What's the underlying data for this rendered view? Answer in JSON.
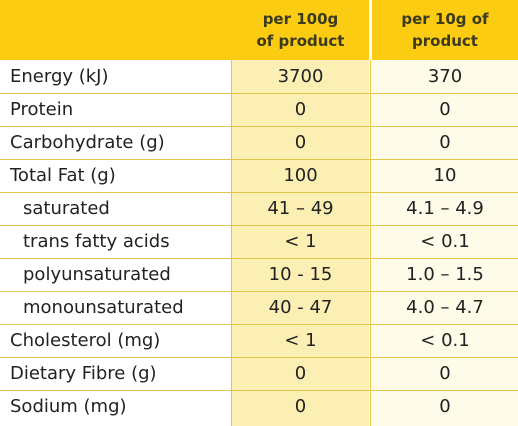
{
  "header": {
    "col1": "per 100g\nof product",
    "col2": "per 10g of\nproduct"
  },
  "rows": [
    {
      "label": "Energy (kJ)",
      "v1": "3700",
      "v2": "370"
    },
    {
      "label": "Protein",
      "v1": "0",
      "v2": "0"
    },
    {
      "label": "Carbohydrate (g)",
      "v1": "0",
      "v2": "0"
    },
    {
      "label": "Total Fat (g)",
      "v1": "100",
      "v2": "10"
    },
    {
      "label": "saturated",
      "v1": "41 – 49",
      "v2": "4.1 – 4.9"
    },
    {
      "label": "trans fatty acids",
      "v1": "< 1",
      "v2": "< 0.1"
    },
    {
      "label": "polyunsaturated",
      "v1": "10 - 15",
      "v2": "1.0 – 1.5"
    },
    {
      "label": "monounsaturated",
      "v1": "40 - 47",
      "v2": "4.0 – 4.7"
    },
    {
      "label": "Cholesterol (mg)",
      "v1": "< 1",
      "v2": "< 0.1"
    },
    {
      "label": "Dietary Fibre (g)",
      "v1": "0",
      "v2": "0"
    },
    {
      "label": "Sodium (mg)",
      "v1": "0",
      "v2": "0"
    }
  ],
  "colors": {
    "header": "#fccc12",
    "column1": "#fcefb4",
    "column2": "#fefbe9",
    "rule": "#e2c54a"
  }
}
